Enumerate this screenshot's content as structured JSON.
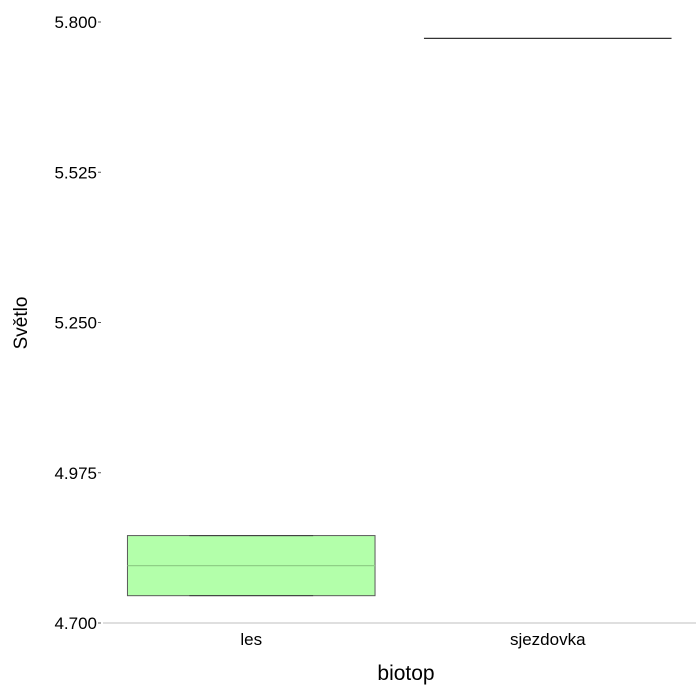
{
  "chart_data": {
    "type": "box",
    "xlabel": "biotop",
    "ylabel": "Světlo",
    "ylim": [
      4.7,
      5.8
    ],
    "yticks": [
      "5.800",
      "5.525",
      "5.250",
      "4.975",
      "4.700"
    ],
    "ytick_values": [
      5.8,
      5.525,
      5.25,
      4.975,
      4.7
    ],
    "categories": [
      "les",
      "sjezdovka"
    ],
    "boxes": [
      {
        "category": "les",
        "min": 4.75,
        "q1": 4.75,
        "median": 4.805,
        "q3": 4.86,
        "max": 4.86,
        "color": "#b3ffaa"
      },
      {
        "category": "sjezdovka",
        "min": 5.77,
        "q1": 5.77,
        "median": 5.77,
        "q3": 5.77,
        "max": 5.77,
        "color": "#b3ffaa"
      }
    ],
    "grid": false,
    "legend": "none"
  }
}
